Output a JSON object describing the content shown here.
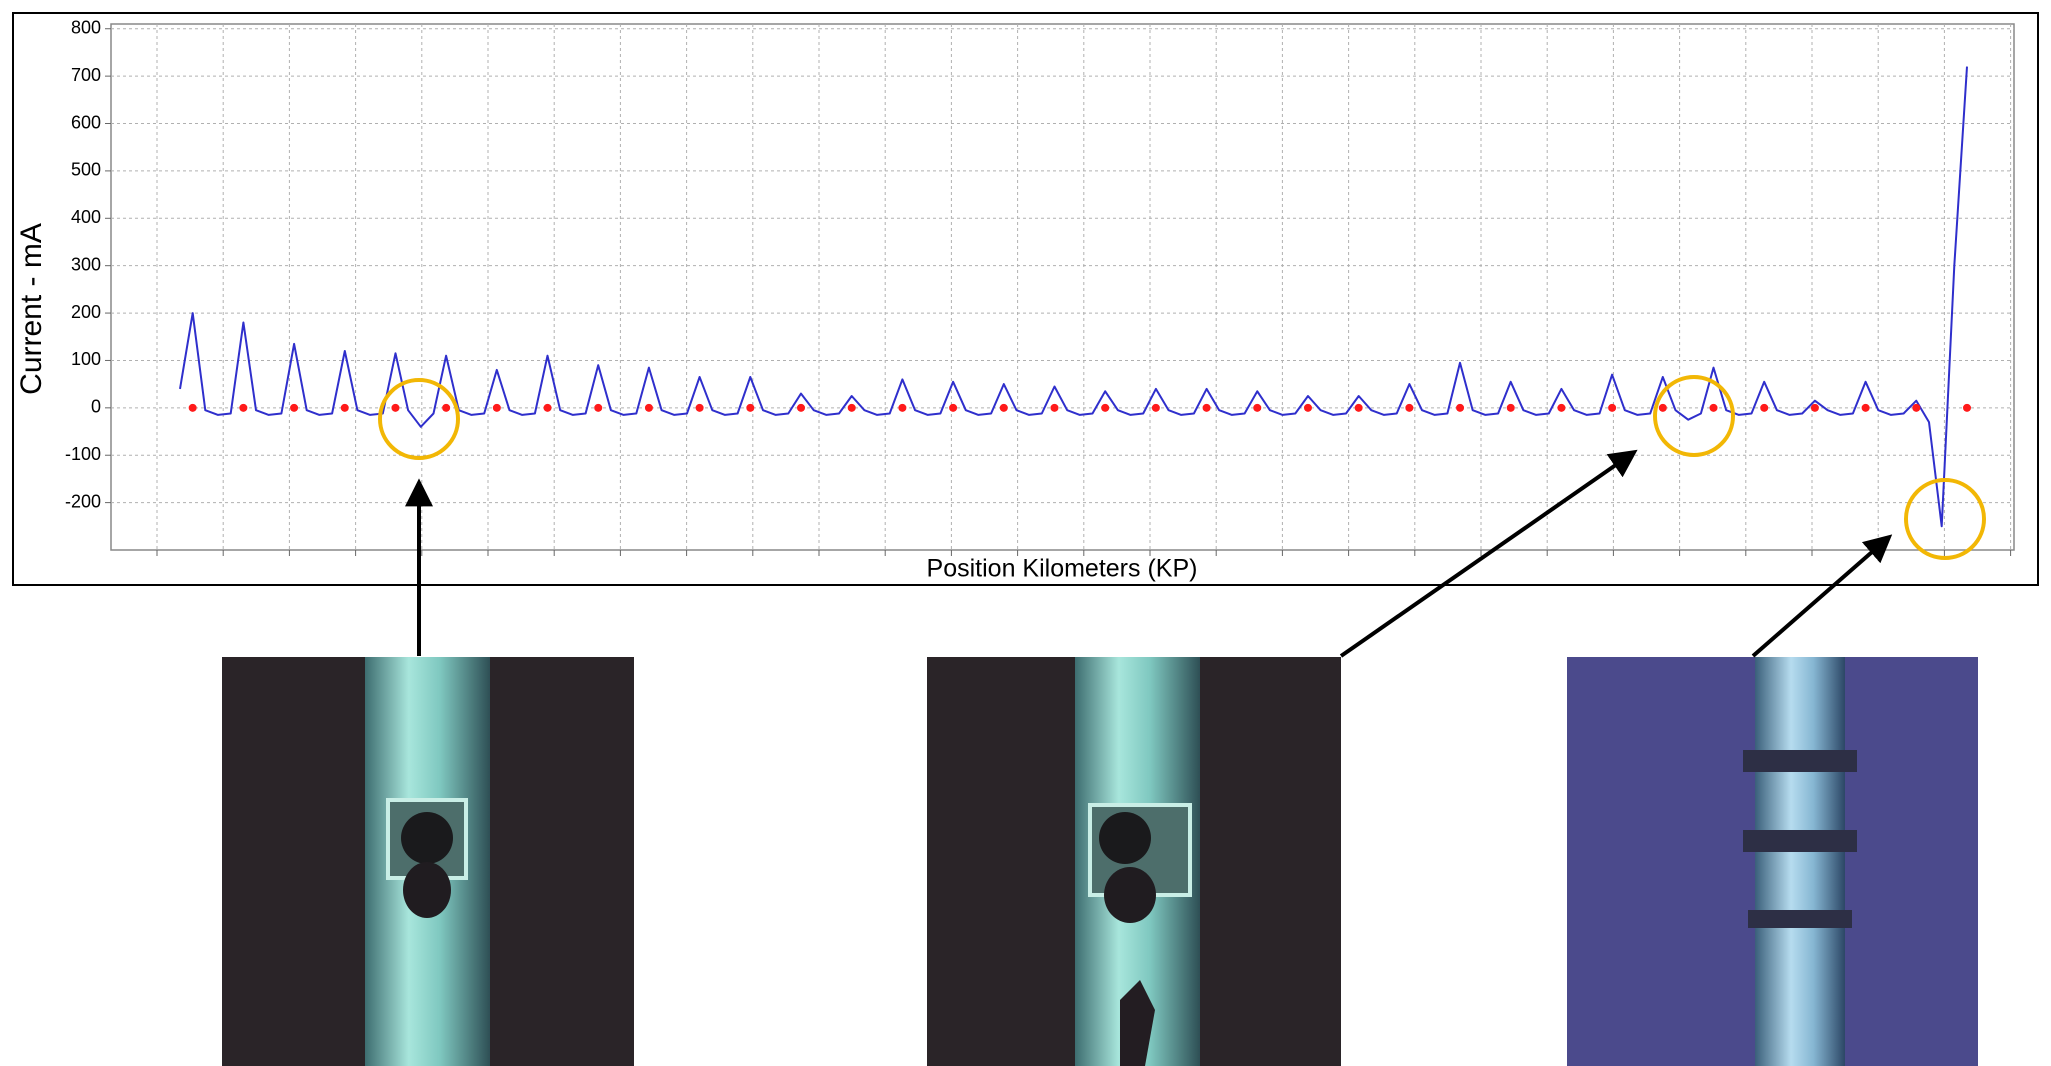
{
  "chart_data": {
    "type": "line",
    "ylabel": "Current - mA",
    "xlabel": "Position Kilometers (KP)",
    "ylim": [
      -300,
      810
    ],
    "yticks": [
      -200,
      -100,
      0,
      100,
      200,
      300,
      400,
      500,
      600,
      700,
      800
    ],
    "grid": true,
    "series": [
      {
        "style": "line",
        "color": "#2f2fcc",
        "values": [
          40,
          200,
          -5,
          -15,
          -12,
          180,
          -5,
          -15,
          -12,
          135,
          -5,
          -15,
          -12,
          120,
          -5,
          -15,
          -12,
          115,
          -5,
          -40,
          -12,
          110,
          -5,
          -15,
          -12,
          80,
          -5,
          -15,
          -12,
          110,
          -5,
          -15,
          -12,
          90,
          -5,
          -15,
          -12,
          85,
          -5,
          -15,
          -12,
          65,
          -5,
          -15,
          -12,
          65,
          -5,
          -15,
          -12,
          30,
          -5,
          -15,
          -12,
          25,
          -5,
          -15,
          -12,
          60,
          -5,
          -15,
          -12,
          55,
          -5,
          -15,
          -12,
          50,
          -5,
          -15,
          -12,
          45,
          -5,
          -15,
          -12,
          35,
          -5,
          -15,
          -12,
          40,
          -5,
          -15,
          -12,
          40,
          -5,
          -15,
          -12,
          35,
          -5,
          -15,
          -12,
          25,
          -5,
          -15,
          -12,
          25,
          -5,
          -15,
          -12,
          50,
          -5,
          -15,
          -12,
          95,
          -5,
          -15,
          -12,
          55,
          -5,
          -15,
          -12,
          40,
          -5,
          -15,
          -12,
          70,
          -5,
          -15,
          -12,
          65,
          -5,
          -25,
          -12,
          85,
          -5,
          -15,
          -12,
          55,
          -5,
          -15,
          -12,
          15,
          -5,
          -15,
          -12,
          55,
          -5,
          -15,
          -12,
          15,
          -30,
          -250,
          300,
          720
        ]
      },
      {
        "style": "dot",
        "color": "#ff1a1a",
        "values": [
          null,
          0,
          null,
          null,
          null,
          0,
          null,
          null,
          null,
          0,
          null,
          null,
          null,
          0,
          null,
          null,
          null,
          0,
          null,
          null,
          null,
          0,
          null,
          null,
          null,
          0,
          null,
          null,
          null,
          0,
          null,
          null,
          null,
          0,
          null,
          null,
          null,
          0,
          null,
          null,
          null,
          0,
          null,
          null,
          null,
          0,
          null,
          null,
          null,
          0,
          null,
          null,
          null,
          0,
          null,
          null,
          null,
          0,
          null,
          null,
          null,
          0,
          null,
          null,
          null,
          0,
          null,
          null,
          null,
          0,
          null,
          null,
          null,
          0,
          null,
          null,
          null,
          0,
          null,
          null,
          null,
          0,
          null,
          null,
          null,
          0,
          null,
          null,
          null,
          0,
          null,
          null,
          null,
          0,
          null,
          null,
          null,
          0,
          null,
          null,
          null,
          0,
          null,
          null,
          null,
          0,
          null,
          null,
          null,
          0,
          null,
          null,
          null,
          0,
          null,
          null,
          null,
          0,
          null,
          null,
          null,
          0,
          null,
          null,
          null,
          0,
          null,
          null,
          null,
          0,
          null,
          null,
          null,
          0,
          null,
          null,
          null,
          0,
          null,
          null,
          null,
          0
        ]
      }
    ]
  }
}
